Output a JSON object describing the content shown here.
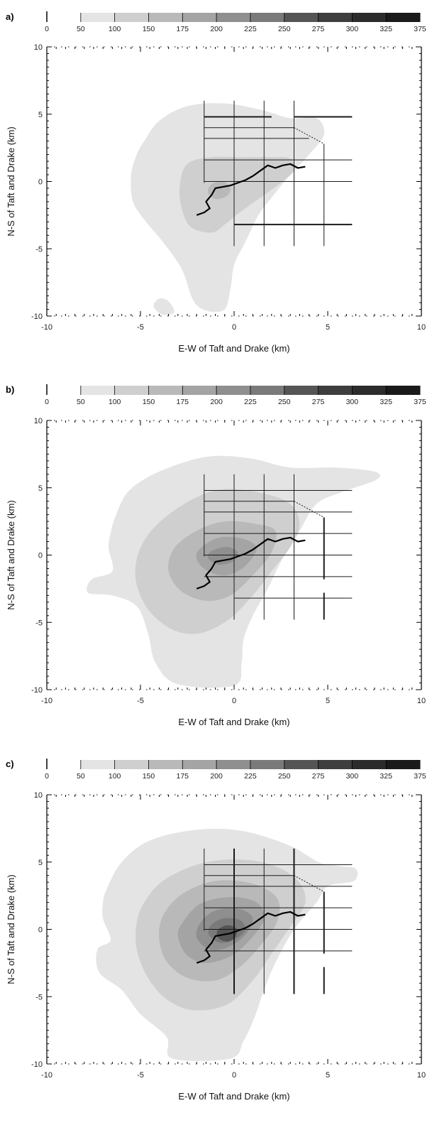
{
  "chart_data": [
    {
      "type": "filled-contour",
      "panel_label": "a)",
      "colorbar": {
        "levels": [
          0,
          50,
          100,
          150,
          175,
          200,
          225,
          250,
          275,
          300,
          325,
          375
        ],
        "tick_labels": [
          "0",
          "50",
          "100",
          "150",
          "175",
          "200",
          "225",
          "250",
          "275",
          "300",
          "325",
          "375"
        ]
      },
      "xlabel": "E-W of Taft and Drake (km)",
      "ylabel": "N-S of Taft and Drake (km)",
      "xlim": [
        -10,
        10
      ],
      "ylim": [
        -10,
        10
      ],
      "x_ticks": [
        "-10",
        "-5",
        "0",
        "5",
        "10"
      ],
      "y_ticks": [
        "10",
        "5",
        "0",
        "-5",
        "-10"
      ],
      "max_level_reached": 175
    },
    {
      "type": "filled-contour",
      "panel_label": "b)",
      "colorbar": {
        "levels": [
          0,
          50,
          100,
          150,
          175,
          200,
          225,
          250,
          275,
          300,
          325,
          375
        ],
        "tick_labels": [
          "0",
          "50",
          "100",
          "150",
          "175",
          "200",
          "225",
          "250",
          "275",
          "300",
          "325",
          "375"
        ]
      },
      "xlabel": "E-W of Taft and Drake (km)",
      "ylabel": "N-S of Taft and Drake (km)",
      "xlim": [
        -10,
        10
      ],
      "ylim": [
        -10,
        10
      ],
      "x_ticks": [
        "-10",
        "-5",
        "0",
        "5",
        "10"
      ],
      "y_ticks": [
        "10",
        "5",
        "0",
        "-5",
        "-10"
      ],
      "max_level_reached": 225
    },
    {
      "type": "filled-contour",
      "panel_label": "c)",
      "colorbar": {
        "levels": [
          0,
          50,
          100,
          150,
          175,
          200,
          225,
          250,
          275,
          300,
          325,
          375
        ],
        "tick_labels": [
          "0",
          "50",
          "100",
          "150",
          "175",
          "200",
          "225",
          "250",
          "275",
          "300",
          "325",
          "375"
        ]
      },
      "xlabel": "E-W of Taft and Drake (km)",
      "ylabel": "N-S of Taft and Drake (km)",
      "xlim": [
        -10,
        10
      ],
      "ylim": [
        -10,
        10
      ],
      "x_ticks": [
        "-10",
        "-5",
        "0",
        "5",
        "10"
      ],
      "y_ticks": [
        "10",
        "5",
        "0",
        "-5",
        "-10"
      ],
      "max_level_reached": 250
    }
  ],
  "colors": {
    "levels_fill": [
      "#ffffff",
      "#e4e4e4",
      "#cfcfcf",
      "#b9b9b9",
      "#a4a4a4",
      "#8f8f8f",
      "#7a7a7a",
      "#555555",
      "#3e3e3e",
      "#2c2c2c",
      "#1a1a1a"
    ],
    "axis": "#000000",
    "street": "#1a1a1a",
    "track": "#000000"
  },
  "street_grid_km": {
    "vertical_x": [
      -1.6,
      0,
      1.6,
      3.2,
      4.8
    ],
    "horizontal_y": [
      4.8,
      4.0,
      3.2,
      1.6,
      0,
      -1.6,
      -3.2
    ]
  },
  "track_km": [
    [
      -2.0,
      -2.5
    ],
    [
      -1.6,
      -2.3
    ],
    [
      -1.3,
      -2.0
    ],
    [
      -1.5,
      -1.5
    ],
    [
      -1.2,
      -1.0
    ],
    [
      -1.0,
      -0.5
    ],
    [
      -0.6,
      -0.4
    ],
    [
      -0.2,
      -0.3
    ],
    [
      0.2,
      -0.1
    ],
    [
      0.6,
      0.1
    ],
    [
      1.0,
      0.4
    ],
    [
      1.4,
      0.8
    ],
    [
      1.8,
      1.2
    ],
    [
      2.2,
      1.0
    ],
    [
      2.6,
      1.2
    ],
    [
      3.0,
      1.3
    ],
    [
      3.4,
      1.0
    ],
    [
      3.8,
      1.1
    ]
  ]
}
